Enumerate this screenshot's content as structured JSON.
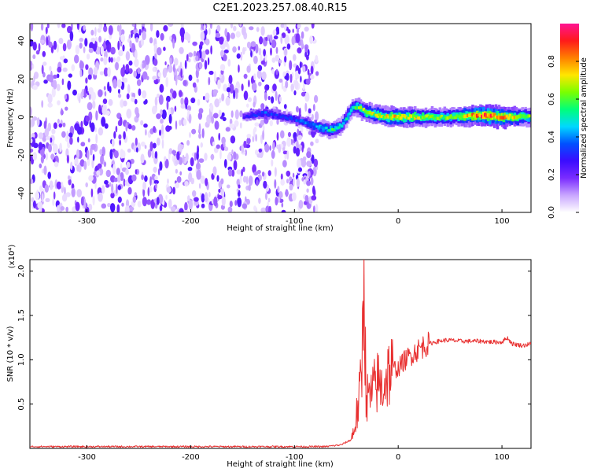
{
  "title": "C2E1.2023.257.08.40.R15",
  "chart_data": [
    {
      "type": "heatmap",
      "xlabel": "Height of straight line (km)",
      "ylabel": "Frequency (Hz)",
      "xlim": [
        -355,
        128
      ],
      "ylim": [
        -50,
        49
      ],
      "x_ticks": [
        -300,
        -200,
        -100,
        0,
        100
      ],
      "y_ticks": [
        -40,
        -20,
        0,
        20,
        40
      ],
      "colorbar": {
        "label": "Normalized spectral amplitude",
        "range": [
          0,
          1
        ],
        "ticks": [
          "0.0",
          "0.2",
          "0.4",
          "0.6",
          "0.8"
        ],
        "colors": [
          "#ffffff",
          "#c9a6ff",
          "#7a2cff",
          "#3b0cff",
          "#0050ff",
          "#00d8ff",
          "#00ff7a",
          "#7aff00",
          "#ffe600",
          "#ff8000",
          "#ff1a1a",
          "#ff1493"
        ]
      },
      "noise_region": {
        "x_range": [
          -355,
          -78
        ],
        "level": 0.25
      },
      "ridge": {
        "x": [
          -150,
          -130,
          -110,
          -95,
          -80,
          -65,
          -55,
          -45,
          -40,
          -30,
          -20,
          -10,
          0,
          20,
          50,
          80,
          100,
          128
        ],
        "y": [
          0,
          2,
          0,
          -2,
          -5,
          -7,
          -4,
          5,
          5,
          2,
          1,
          0,
          0,
          0,
          0,
          1,
          0,
          0
        ],
        "amplitude": [
          0.25,
          0.35,
          0.3,
          0.35,
          0.4,
          0.55,
          0.45,
          0.5,
          0.6,
          0.65,
          0.65,
          0.7,
          0.75,
          0.65,
          0.6,
          0.85,
          0.8,
          0.6
        ]
      }
    },
    {
      "type": "line",
      "xlabel": "Height of straight line (km)",
      "ylabel": "SNR (10 * v/v)",
      "y_multiplier": "(x10⁴)",
      "xlim": [
        -355,
        128
      ],
      "ylim": [
        0,
        2.13
      ],
      "x_ticks": [
        -300,
        -200,
        -100,
        0,
        100
      ],
      "y_ticks": [
        "0.5",
        "1.0",
        "1.5",
        "2.0"
      ],
      "color": "#e83030",
      "series": [
        {
          "x": [
            -355,
            -300,
            -200,
            -100,
            -70,
            -55,
            -45,
            -42,
            -38,
            -35,
            -33,
            -31,
            -28,
            -24,
            -20,
            -16,
            -10,
            -5,
            0,
            5,
            10,
            15,
            20,
            25,
            30,
            35,
            40,
            45,
            50,
            60,
            70,
            80,
            90,
            100,
            105,
            110,
            115,
            120,
            128
          ],
          "y": [
            0.02,
            0.02,
            0.02,
            0.02,
            0.02,
            0.04,
            0.1,
            0.25,
            0.5,
            0.9,
            2.1,
            0.6,
            0.55,
            0.65,
            0.75,
            0.68,
            0.85,
            0.9,
            0.9,
            0.98,
            1.03,
            1.08,
            1.12,
            1.16,
            1.18,
            1.2,
            1.21,
            1.22,
            1.22,
            1.21,
            1.21,
            1.21,
            1.2,
            1.2,
            1.25,
            1.18,
            1.17,
            1.16,
            1.18
          ]
        }
      ]
    }
  ]
}
